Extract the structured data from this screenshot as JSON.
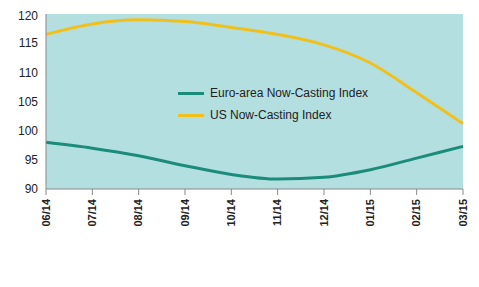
{
  "chart_data": {
    "type": "line",
    "categories": [
      "06/14",
      "07/14",
      "08/14",
      "09/14",
      "10/14",
      "11/14",
      "12/14",
      "01/15",
      "02/15",
      "03/15"
    ],
    "series": [
      {
        "name": "Euro-area Now-Casting Index",
        "color": "#1b8c7c",
        "values": [
          98,
          97,
          95.7,
          94,
          92.5,
          91.7,
          92,
          93.3,
          95.3,
          97.3
        ]
      },
      {
        "name": "US Now-Casting Index",
        "color": "#f2c01a",
        "values": [
          116.5,
          118.3,
          119,
          118.7,
          117.7,
          116.5,
          114.7,
          111.6,
          106.5,
          101.2
        ]
      }
    ],
    "ylim": [
      90,
      120
    ],
    "yticks": [
      90,
      95,
      100,
      105,
      110,
      115,
      120
    ],
    "grid": false,
    "legend": "center"
  }
}
